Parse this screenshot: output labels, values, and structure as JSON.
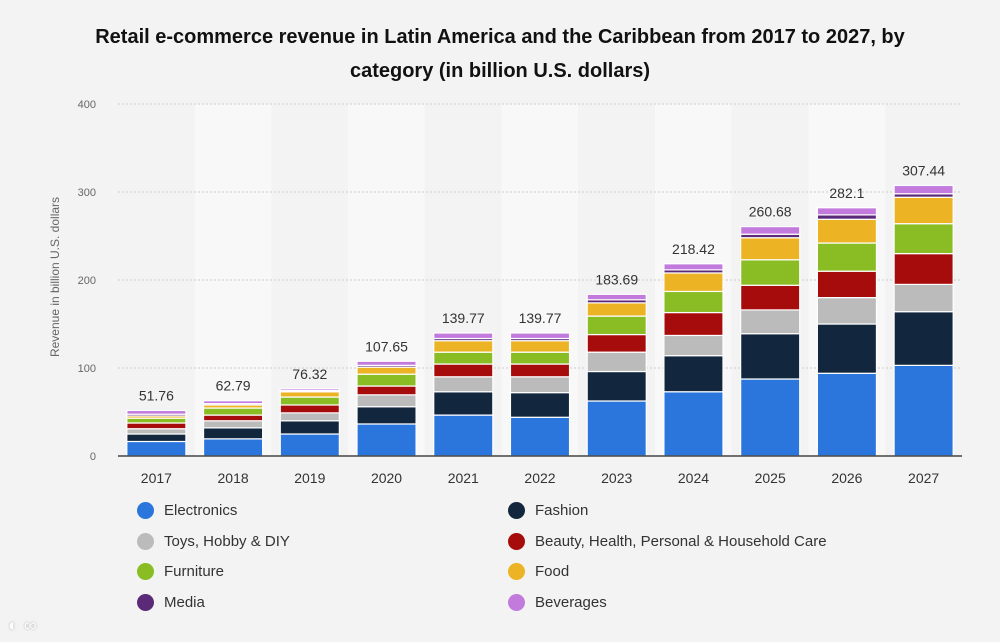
{
  "chart_data": {
    "type": "bar",
    "stacked": true,
    "title": "Retail e-commerce revenue in Latin America and the Caribbean from 2017 to 2027, by category (in billion U.S. dollars)",
    "xlabel": "",
    "ylabel": "Revenue in billion U.S. dollars",
    "ylim": [
      0,
      400
    ],
    "yticks": [
      "0",
      "100",
      "200",
      "300",
      "400"
    ],
    "categories": [
      "2017",
      "2018",
      "2019",
      "2020",
      "2021",
      "2022",
      "2023",
      "2024",
      "2025",
      "2026",
      "2027"
    ],
    "totals": [
      "51.76",
      "62.79",
      "76.32",
      "107.65",
      "139.77",
      "139.77",
      "183.69",
      "218.42",
      "260.68",
      "282.1",
      "307.44"
    ],
    "series": [
      {
        "name": "Electronics",
        "color": "#2a76dd",
        "values": [
          16.5,
          19.5,
          25,
          36.4,
          46.5,
          44,
          62.5,
          73,
          87.5,
          94,
          103
        ]
      },
      {
        "name": "Fashion",
        "color": "#12263d",
        "values": [
          8.5,
          12.5,
          15,
          19.6,
          26.5,
          28,
          33.5,
          41,
          51.5,
          56,
          61
        ]
      },
      {
        "name": "Toys, Hobby & DIY",
        "color": "#bbbbbb",
        "values": [
          6,
          8,
          9,
          13.5,
          17,
          18,
          22,
          23,
          27,
          30,
          31
        ]
      },
      {
        "name": "Beauty, Health, Personal & Household Care",
        "color": "#a70c0c",
        "values": [
          6.5,
          6.5,
          9,
          10,
          14.5,
          14.5,
          20,
          26,
          28,
          30,
          35
        ]
      },
      {
        "name": "Furniture",
        "color": "#8abd24",
        "values": [
          5.5,
          8,
          9,
          13.5,
          13.5,
          13.5,
          21,
          24,
          29,
          32,
          34
        ]
      },
      {
        "name": "Food",
        "color": "#ecb425",
        "values": [
          2.5,
          3.5,
          6,
          8,
          13,
          13,
          15,
          21,
          25,
          27,
          30
        ]
      },
      {
        "name": "Media",
        "color": "#5a2a78",
        "values": [
          2,
          1.5,
          1.3,
          2,
          2.5,
          2.5,
          3.5,
          3.5,
          4,
          5,
          4
        ]
      },
      {
        "name": "Beverages",
        "color": "#c27bdd",
        "values": [
          4.26,
          3.29,
          2.02,
          4.65,
          6.27,
          6.27,
          6.19,
          6.92,
          8.68,
          8.1,
          9.44
        ]
      }
    ],
    "grid": true,
    "legend_position": "bottom"
  }
}
